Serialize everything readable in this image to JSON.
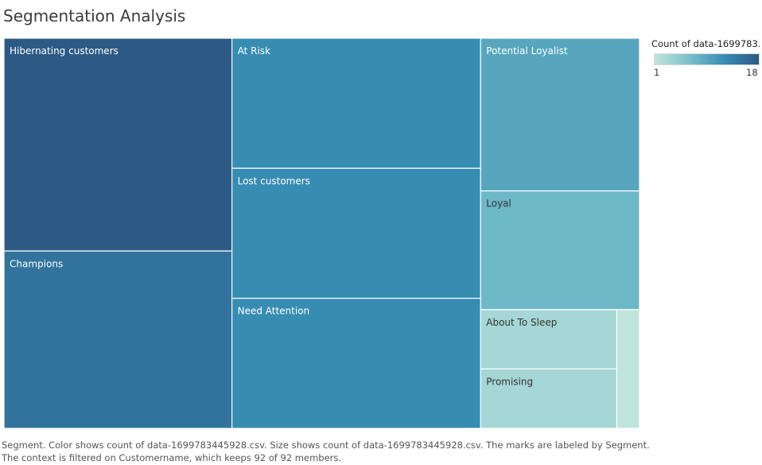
{
  "title": "Segmentation Analysis",
  "legend": {
    "title": "Count of data-1699783..",
    "min_label": "1",
    "max_label": "18",
    "color_low": "#c0e6dc",
    "color_high": "#2c5a85"
  },
  "caption": {
    "line1": "Segment.  Color shows count of data-1699783445928.csv.  Size shows count of data-1699783445928.csv.  The marks are labeled by Segment.",
    "line2": "The context is filtered on Customername, which keeps 92 of 92 members."
  },
  "chart_data": {
    "type": "treemap",
    "title": "Segmentation Analysis",
    "total": 92,
    "color_scale": {
      "min": 1,
      "max": 18
    },
    "segments": [
      {
        "label": "Hibernating customers",
        "value": 18
      },
      {
        "label": "Champions",
        "value": 15
      },
      {
        "label": "At Risk",
        "value": 12
      },
      {
        "label": "Lost customers",
        "value": 12
      },
      {
        "label": "Need Attention",
        "value": 12
      },
      {
        "label": "Potential Loyalist",
        "value": 9
      },
      {
        "label": "Loyal",
        "value": 7
      },
      {
        "label": "About To Sleep",
        "value": 3
      },
      {
        "label": "Promising",
        "value": 3
      },
      {
        "label": "",
        "value": 1
      }
    ]
  }
}
